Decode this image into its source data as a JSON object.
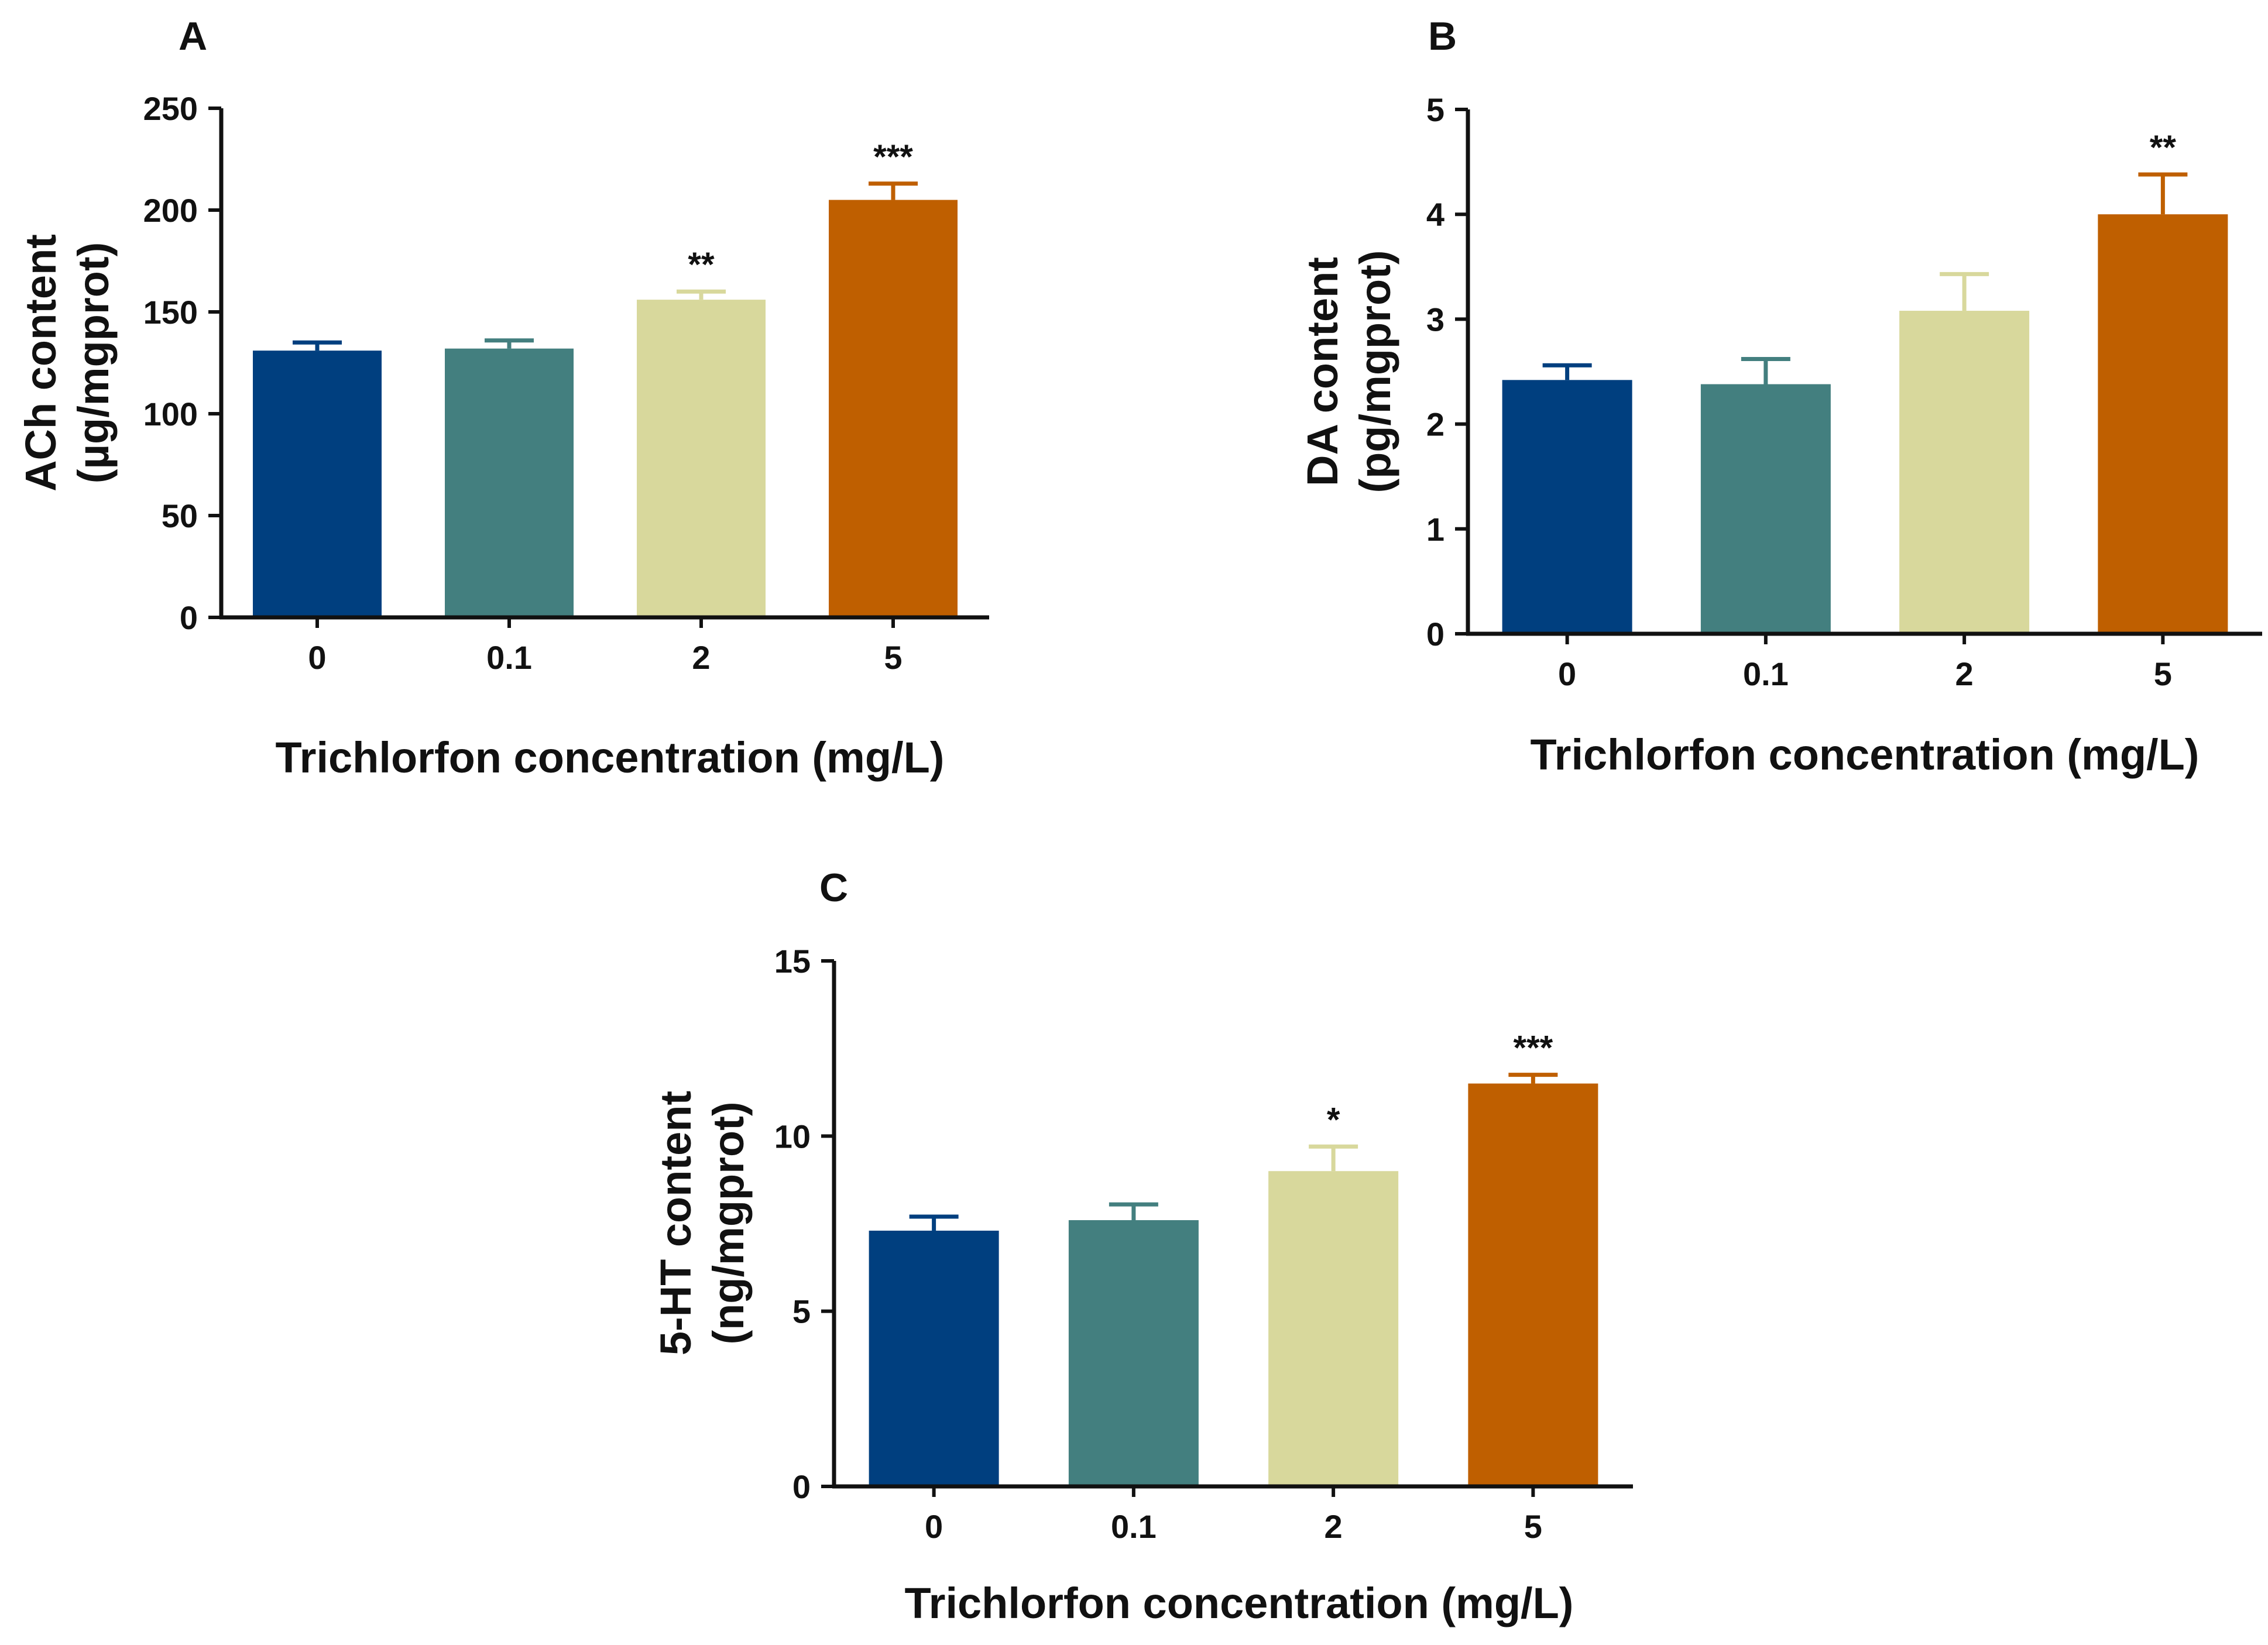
{
  "colors": {
    "axis": "#111111",
    "background": "#ffffff"
  },
  "chart_data": [
    {
      "panel": "A",
      "type": "bar",
      "title": "",
      "xlabel": "Trichlorfon concentration (mg/L)",
      "ylabel_lines": [
        "ACh content",
        "(µg/mgprot)"
      ],
      "categories": [
        "0",
        "0.1",
        "2",
        "5"
      ],
      "values": [
        131,
        132,
        156,
        205
      ],
      "errors": [
        4,
        4,
        4,
        8
      ],
      "significance": [
        "",
        "",
        "**",
        "***"
      ],
      "colors": [
        "#003f7f",
        "#437f7f",
        "#d8d89c",
        "#bf5f00"
      ],
      "ylim": [
        0,
        250
      ],
      "yticks": [
        "0",
        "50",
        "100",
        "150",
        "200",
        "250"
      ],
      "grid": false
    },
    {
      "panel": "B",
      "type": "bar",
      "title": "",
      "xlabel": "Trichlorfon concentration (mg/L)",
      "ylabel_lines": [
        "DA content",
        "(pg/mgprot)"
      ],
      "categories": [
        "0",
        "0.1",
        "2",
        "5"
      ],
      "values": [
        2.42,
        2.38,
        3.08,
        4.0
      ],
      "errors": [
        0.14,
        0.24,
        0.35,
        0.38
      ],
      "significance": [
        "",
        "",
        "",
        "**"
      ],
      "colors": [
        "#003f7f",
        "#437f7f",
        "#d8d89c",
        "#bf5f00"
      ],
      "ylim": [
        0,
        5
      ],
      "yticks": [
        "0",
        "1",
        "2",
        "3",
        "4",
        "5"
      ],
      "grid": false
    },
    {
      "panel": "C",
      "type": "bar",
      "title": "",
      "xlabel": "Trichlorfon concentration (mg/L)",
      "ylabel_lines": [
        "5-HT content",
        "(ng/mgprot)"
      ],
      "categories": [
        "0",
        "0.1",
        "2",
        "5"
      ],
      "values": [
        7.3,
        7.6,
        9.0,
        11.5
      ],
      "errors": [
        0.4,
        0.45,
        0.7,
        0.25
      ],
      "significance": [
        "",
        "",
        "*",
        "***"
      ],
      "colors": [
        "#003f7f",
        "#437f7f",
        "#d8d89c",
        "#bf5f00"
      ],
      "ylim": [
        0,
        15
      ],
      "yticks": [
        "0",
        "5",
        "10",
        "15"
      ],
      "grid": false
    }
  ]
}
